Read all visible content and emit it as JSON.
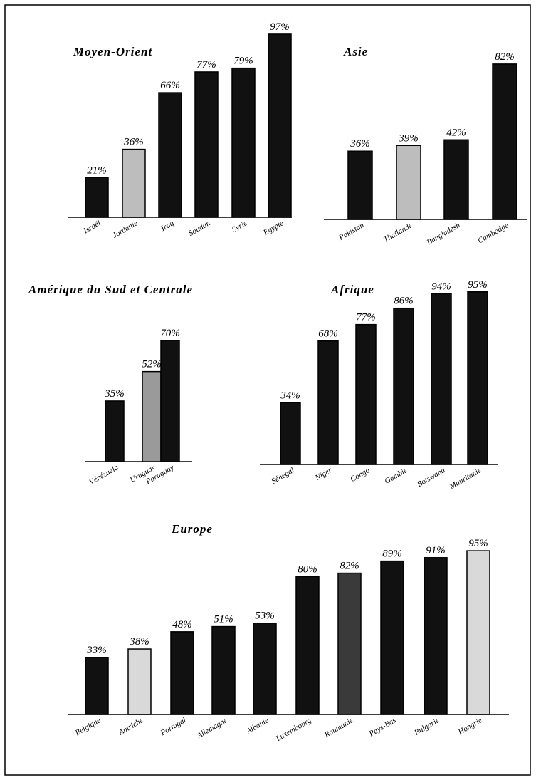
{
  "chart_data": [
    {
      "type": "bar",
      "title": "Moyen-Orient",
      "categories": [
        "Israël",
        "Jordanie",
        "Iraq",
        "Soudan",
        "Syrie",
        "Egypte"
      ],
      "values": [
        21,
        36,
        66,
        77,
        79,
        97
      ],
      "value_labels": [
        "21%",
        "36%",
        "66%",
        "77%",
        "79%",
        "97%"
      ],
      "colors": [
        "#111111",
        "#bdbdbd",
        "#111111",
        "#111111",
        "#111111",
        "#111111"
      ]
    },
    {
      "type": "bar",
      "title": "Asie",
      "categories": [
        "Pakistan",
        "Thaïlande",
        "Bangladesh",
        "Cambodge"
      ],
      "values": [
        36,
        39,
        42,
        82
      ],
      "value_labels": [
        "36%",
        "39%",
        "42%",
        "82%"
      ],
      "colors": [
        "#111111",
        "#bdbdbd",
        "#111111",
        "#111111"
      ]
    },
    {
      "type": "bar",
      "title": "Amérique du Sud et Centrale",
      "categories": [
        "Vénézuela",
        "Uruguay",
        "Paraguay"
      ],
      "values": [
        35,
        52,
        70
      ],
      "value_labels": [
        "35%",
        "52%",
        "70%"
      ],
      "colors": [
        "#111111",
        "#9a9a9a",
        "#111111"
      ]
    },
    {
      "type": "bar",
      "title": "Afrique",
      "categories": [
        "Sénégal",
        "Niger",
        "Congo",
        "Gambie",
        "Botswana",
        "Mauritanie"
      ],
      "values": [
        34,
        68,
        77,
        86,
        94,
        95
      ],
      "value_labels": [
        "34%",
        "68%",
        "77%",
        "86%",
        "94%",
        "95%"
      ],
      "colors": [
        "#111111",
        "#111111",
        "#111111",
        "#111111",
        "#111111",
        "#111111"
      ]
    },
    {
      "type": "bar",
      "title": "Europe",
      "categories": [
        "Belgique",
        "Autriche",
        "Portugal",
        "Allemagne",
        "Albanie",
        "Luxembourg",
        "Roumanie",
        "Pays-Bas",
        "Bulgarie",
        "Hongrie"
      ],
      "values": [
        33,
        38,
        48,
        51,
        53,
        80,
        82,
        89,
        91,
        95
      ],
      "value_labels": [
        "33%",
        "38%",
        "48%",
        "51%",
        "53%",
        "80%",
        "82%",
        "89%",
        "91%",
        "95%"
      ],
      "colors": [
        "#111111",
        "#d9d9d9",
        "#111111",
        "#111111",
        "#111111",
        "#111111",
        "#3a3a3a",
        "#111111",
        "#111111",
        "#d9d9d9"
      ]
    }
  ]
}
